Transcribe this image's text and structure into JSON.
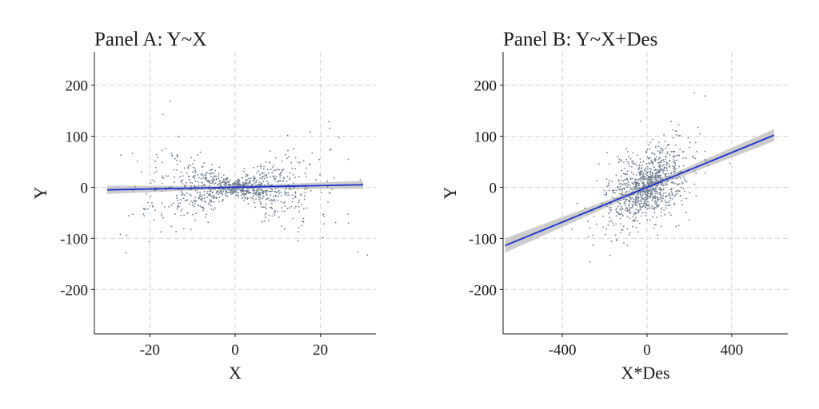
{
  "chart_data": [
    {
      "type": "scatter",
      "title": "Panel A: Y~X",
      "xlabel": "X",
      "ylabel": "Y",
      "xlim": [
        -33,
        33
      ],
      "ylim": [
        -287,
        265
      ],
      "xticks": [
        -20,
        0,
        20
      ],
      "yticks": [
        -200,
        -100,
        0,
        100,
        200
      ],
      "xtick_labels": [
        "-20",
        "0",
        "20"
      ],
      "ytick_labels": [
        "-200",
        "-100",
        "0",
        "100",
        "200"
      ],
      "grid": true,
      "point_color": "#6b7a8c",
      "fit": {
        "x": [
          -30,
          30
        ],
        "y": [
          -5,
          5
        ],
        "ci_halfwidth": [
          8,
          8
        ],
        "color": "#1c2fd1",
        "band_color": "#c4c4c4"
      },
      "point_count": 1000
    },
    {
      "type": "scatter",
      "title": "Panel B: Y~X+Des",
      "xlabel": "X*Des",
      "ylabel": "Y",
      "xlim": [
        -680,
        665
      ],
      "ylim": [
        -287,
        265
      ],
      "xticks": [
        -400,
        0,
        400
      ],
      "yticks": [
        -200,
        -100,
        0,
        100,
        200
      ],
      "xtick_labels": [
        "-400",
        "0",
        "400"
      ],
      "ytick_labels": [
        "-200",
        "-100",
        "0",
        "100",
        "200"
      ],
      "grid": true,
      "point_color": "#6b7a8c",
      "fit": {
        "x": [
          -670,
          600
        ],
        "y": [
          -114,
          102
        ],
        "ci_halfwidth": [
          14,
          12
        ],
        "color": "#1c2fd1",
        "band_color": "#c4c4c4"
      },
      "point_count": 1000
    }
  ]
}
